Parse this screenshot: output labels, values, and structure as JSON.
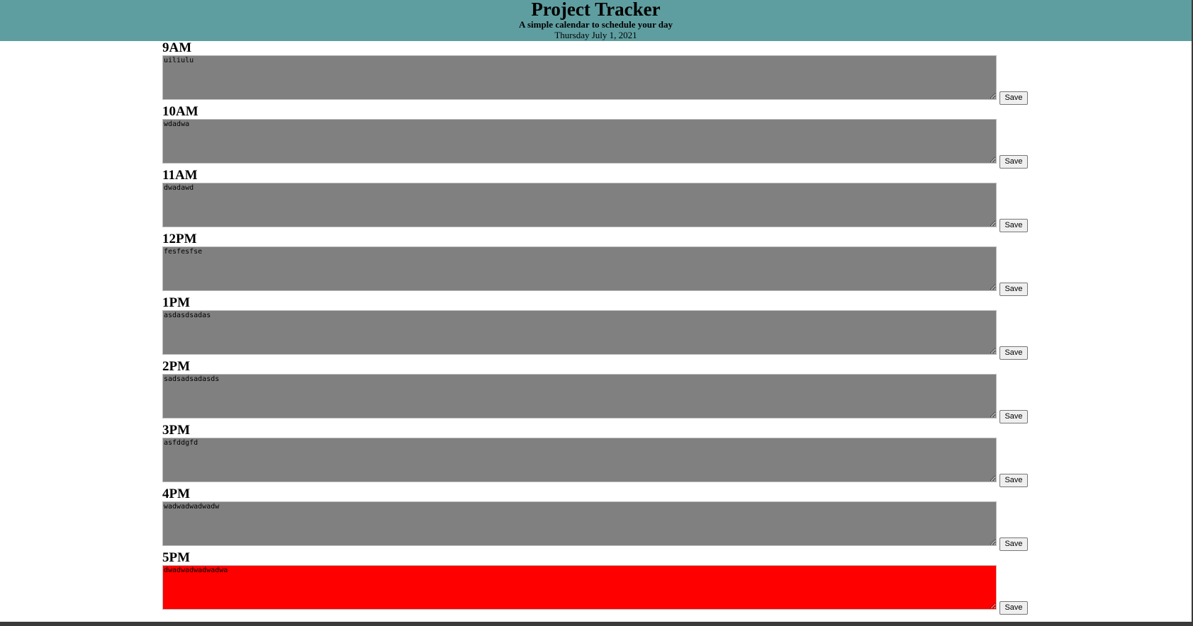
{
  "header": {
    "title": "Project Tracker",
    "subtitle": "A simple calendar to schedule your day",
    "date": "Thursday July 1, 2021"
  },
  "colors": {
    "header_bg": "#5f9ea0",
    "past_slot": "#808080",
    "current_slot": "#ff0000"
  },
  "rows": [
    {
      "hour": "9AM",
      "text": "uiliulu",
      "state": "past",
      "save_label": "Save"
    },
    {
      "hour": "10AM",
      "text": "wdadwa",
      "state": "past",
      "save_label": "Save"
    },
    {
      "hour": "11AM",
      "text": "dwadawd",
      "state": "past",
      "save_label": "Save"
    },
    {
      "hour": "12PM",
      "text": "fesfesfse",
      "state": "past",
      "save_label": "Save"
    },
    {
      "hour": "1PM",
      "text": "asdasdsadas",
      "state": "past",
      "save_label": "Save"
    },
    {
      "hour": "2PM",
      "text": "sadsadsadasds",
      "state": "past",
      "save_label": "Save"
    },
    {
      "hour": "3PM",
      "text": "asfddgfd",
      "state": "past",
      "save_label": "Save"
    },
    {
      "hour": "4PM",
      "text": "wadwadwadwadw",
      "state": "past",
      "save_label": "Save"
    },
    {
      "hour": "5PM",
      "text": "dwadwadwadwadwa",
      "state": "current",
      "save_label": "Save"
    }
  ]
}
